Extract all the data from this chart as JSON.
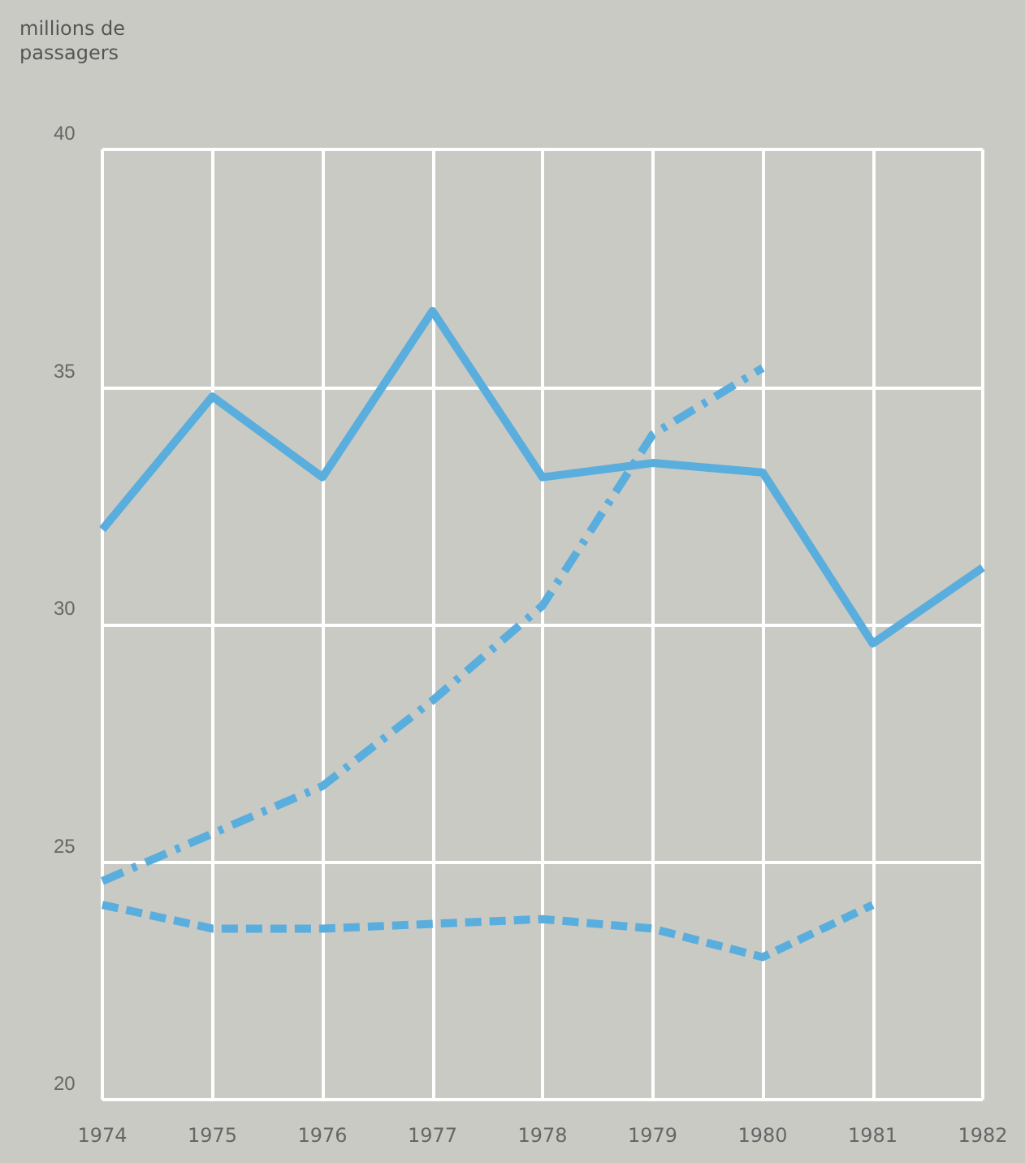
{
  "chart_data": {
    "type": "line",
    "ylabel": "millions de passagers",
    "categories": [
      "1974",
      "1975",
      "1976",
      "1977",
      "1978",
      "1979",
      "1980",
      "1981",
      "1982"
    ],
    "series": [
      {
        "color": "#5aaede",
        "line_style": "solid",
        "values": [
          32.0,
          34.8,
          33.1,
          36.6,
          33.1,
          33.4,
          33.2,
          29.6,
          31.2
        ]
      },
      {
        "color": "#5aaede",
        "line_style": "dashdot",
        "values": [
          24.6,
          25.6,
          26.6,
          28.4,
          30.4,
          34.0,
          35.4,
          null,
          null
        ]
      },
      {
        "color": "#5aaede",
        "line_style": "dashed",
        "values": [
          24.1,
          23.6,
          23.6,
          23.7,
          23.8,
          23.6,
          23.0,
          24.1,
          null
        ]
      }
    ],
    "ylim": [
      20,
      40
    ],
    "yticks": [
      20,
      25,
      30,
      35,
      40
    ],
    "grid": true,
    "marker": "none"
  }
}
